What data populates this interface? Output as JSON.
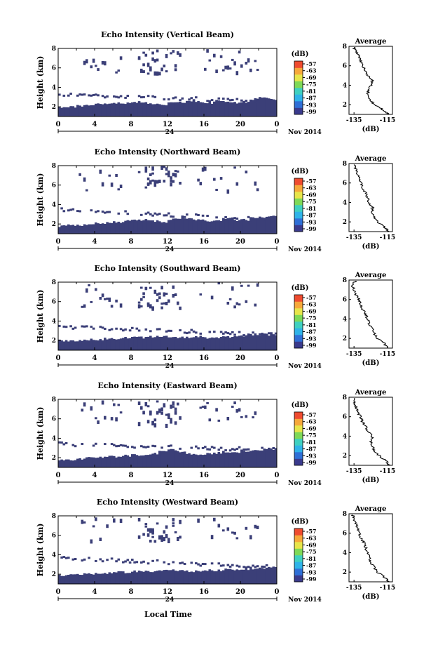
{
  "figure": {
    "xaxis_label": "Local Time",
    "date_label": "Nov 2014",
    "day_label": "24",
    "colorbar_unit": "(dB)",
    "colorbar_ticks": [
      "-57",
      "-63",
      "-69",
      "-75",
      "-81",
      "-87",
      "-93",
      "-99"
    ],
    "colors": {
      "echo": "#3b3f78",
      "colormap": [
        "#3a3a8c",
        "#2f6fd6",
        "#2fb3e8",
        "#3fd0c0",
        "#7ed957",
        "#e7e54a",
        "#f6a83a",
        "#ef4b2f"
      ]
    }
  },
  "chart_data": [
    {
      "type": "heatmap",
      "title": "Echo Intensity (Vertical Beam)",
      "ylabel": "Height (km)",
      "x_ticks": [
        "0",
        "4",
        "8",
        "12",
        "16",
        "20",
        "0"
      ],
      "y_ticks": [
        "2",
        "4",
        "6",
        "8"
      ],
      "xlim": [
        0,
        24
      ],
      "ylim": [
        1,
        8
      ],
      "boundary_layer_top_km": [
        2.0,
        2.0,
        2.1,
        2.2,
        2.3,
        2.3,
        2.4,
        2.4,
        2.5,
        2.4,
        2.3,
        2.2,
        2.4,
        2.5,
        2.6,
        2.5,
        2.4,
        2.6,
        2.5,
        2.4,
        2.5,
        2.8,
        2.9,
        2.8
      ],
      "scatter_layer": {
        "start_km": 3.4,
        "end_km": 2.6
      },
      "avg_profile": {
        "title": "Average",
        "xlabel": "(dB)",
        "x_ticks": [
          "-135",
          "-115"
        ],
        "y_ticks": [
          "2",
          "4",
          "6",
          "8"
        ],
        "xlim": [
          -138,
          -112
        ],
        "ylim": [
          1,
          8
        ],
        "height_km": [
          1.0,
          1.5,
          2.0,
          2.5,
          3.0,
          3.5,
          4.0,
          4.5,
          5.0,
          5.5,
          6.0,
          6.5,
          7.0,
          7.5,
          7.9
        ],
        "db": [
          -114,
          -118,
          -123,
          -125,
          -127,
          -126,
          -125,
          -124,
          -127,
          -128,
          -130,
          -131,
          -132,
          -134,
          -135
        ]
      }
    },
    {
      "type": "heatmap",
      "title": "Echo Intensity (Northward Beam)",
      "ylabel": "Height (km)",
      "x_ticks": [
        "0",
        "4",
        "8",
        "12",
        "16",
        "20",
        "0"
      ],
      "y_ticks": [
        "2",
        "4",
        "6",
        "8"
      ],
      "xlim": [
        0,
        24
      ],
      "ylim": [
        1,
        8
      ],
      "boundary_layer_top_km": [
        1.8,
        1.9,
        1.9,
        2.0,
        2.1,
        2.1,
        2.2,
        2.3,
        2.4,
        2.4,
        2.3,
        2.2,
        2.5,
        2.6,
        2.5,
        2.4,
        2.3,
        2.4,
        2.5,
        2.4,
        2.4,
        2.6,
        2.7,
        2.8
      ],
      "scatter_layer": {
        "start_km": 3.6,
        "end_km": 2.5
      },
      "avg_profile": {
        "title": "Average",
        "xlabel": "(dB)",
        "x_ticks": [
          "-135",
          "-115"
        ],
        "y_ticks": [
          "2",
          "4",
          "6",
          "8"
        ],
        "xlim": [
          -138,
          -112
        ],
        "ylim": [
          1,
          8
        ],
        "height_km": [
          1.0,
          1.5,
          2.0,
          2.5,
          3.0,
          3.5,
          4.0,
          4.5,
          5.0,
          5.5,
          6.0,
          6.5,
          7.0,
          7.5,
          7.9
        ],
        "db": [
          -114,
          -117,
          -121,
          -123,
          -124,
          -124,
          -126,
          -127,
          -128,
          -130,
          -131,
          -132,
          -133,
          -134,
          -135
        ]
      }
    },
    {
      "type": "heatmap",
      "title": "Echo Intensity (Southward Beam)",
      "ylabel": "Height (km)",
      "x_ticks": [
        "0",
        "4",
        "8",
        "12",
        "16",
        "20",
        "0"
      ],
      "y_ticks": [
        "2",
        "4",
        "6",
        "8"
      ],
      "xlim": [
        0,
        24
      ],
      "ylim": [
        1,
        8
      ],
      "boundary_layer_top_km": [
        2.0,
        2.0,
        2.0,
        2.1,
        2.1,
        2.2,
        2.2,
        2.3,
        2.3,
        2.3,
        2.4,
        2.4,
        2.4,
        2.3,
        2.3,
        2.4,
        2.3,
        2.3,
        2.4,
        2.4,
        2.5,
        2.5,
        2.6,
        2.6
      ],
      "scatter_layer": {
        "start_km": 3.5,
        "end_km": 2.7
      },
      "avg_profile": {
        "title": "Average",
        "xlabel": "(dB)",
        "x_ticks": [
          "-135",
          "-115"
        ],
        "y_ticks": [
          "2",
          "4",
          "6",
          "8"
        ],
        "xlim": [
          -138,
          -112
        ],
        "ylim": [
          1,
          8
        ],
        "height_km": [
          1.0,
          1.5,
          2.0,
          2.5,
          3.0,
          3.5,
          4.0,
          4.5,
          5.0,
          5.5,
          6.0,
          6.5,
          7.0,
          7.5,
          7.9
        ],
        "db": [
          -115,
          -117,
          -121,
          -123,
          -124,
          -126,
          -127,
          -128,
          -130,
          -131,
          -132,
          -134,
          -135,
          -136,
          -134
        ]
      }
    },
    {
      "type": "heatmap",
      "title": "Echo Intensity (Eastward Beam)",
      "ylabel": "Height (km)",
      "x_ticks": [
        "0",
        "4",
        "8",
        "12",
        "16",
        "20",
        "0"
      ],
      "y_ticks": [
        "2",
        "4",
        "6",
        "8"
      ],
      "xlim": [
        0,
        24
      ],
      "ylim": [
        1,
        8
      ],
      "boundary_layer_top_km": [
        1.8,
        1.8,
        1.9,
        2.0,
        2.0,
        2.1,
        2.1,
        2.2,
        2.3,
        2.3,
        2.4,
        2.6,
        2.8,
        2.6,
        2.4,
        2.3,
        2.4,
        2.5,
        2.6,
        2.6,
        2.7,
        2.8,
        2.8,
        2.9
      ],
      "scatter_layer": {
        "start_km": 3.5,
        "end_km": 2.9
      },
      "avg_profile": {
        "title": "Average",
        "xlabel": "(dB)",
        "x_ticks": [
          "-135",
          "-115"
        ],
        "y_ticks": [
          "2",
          "4",
          "6",
          "8"
        ],
        "xlim": [
          -138,
          -112
        ],
        "ylim": [
          1,
          8
        ],
        "height_km": [
          1.0,
          1.5,
          2.0,
          2.5,
          3.0,
          3.5,
          4.0,
          4.5,
          5.0,
          5.5,
          6.0,
          6.5,
          7.0,
          7.5,
          7.9
        ],
        "db": [
          -114,
          -116,
          -120,
          -123,
          -124,
          -125,
          -124,
          -127,
          -128,
          -130,
          -131,
          -133,
          -134,
          -135,
          -135
        ]
      }
    },
    {
      "type": "heatmap",
      "title": "Echo Intensity (Westward Beam)",
      "ylabel": "Height (km)",
      "x_ticks": [
        "0",
        "4",
        "8",
        "12",
        "16",
        "20",
        "0"
      ],
      "y_ticks": [
        "2",
        "4",
        "6",
        "8"
      ],
      "xlim": [
        0,
        24
      ],
      "ylim": [
        1,
        8
      ],
      "boundary_layer_top_km": [
        1.9,
        1.9,
        2.0,
        2.0,
        2.1,
        2.1,
        2.2,
        2.2,
        2.3,
        2.3,
        2.3,
        2.4,
        2.4,
        2.4,
        2.3,
        2.3,
        2.4,
        2.4,
        2.5,
        2.5,
        2.5,
        2.6,
        2.6,
        2.7
      ],
      "scatter_layer": {
        "start_km": 3.8,
        "end_km": 2.8
      },
      "avg_profile": {
        "title": "Average",
        "xlabel": "(dB)",
        "x_ticks": [
          "-135",
          "-115"
        ],
        "y_ticks": [
          "2",
          "4",
          "6",
          "8"
        ],
        "xlim": [
          -138,
          -112
        ],
        "ylim": [
          1,
          8
        ],
        "height_km": [
          1.0,
          1.5,
          2.0,
          2.5,
          3.0,
          3.5,
          4.0,
          4.5,
          5.0,
          5.5,
          6.0,
          6.5,
          7.0,
          7.5,
          7.9
        ],
        "db": [
          -114,
          -117,
          -121,
          -123,
          -125,
          -126,
          -127,
          -128,
          -129,
          -131,
          -132,
          -133,
          -134,
          -135,
          -136
        ]
      }
    }
  ]
}
